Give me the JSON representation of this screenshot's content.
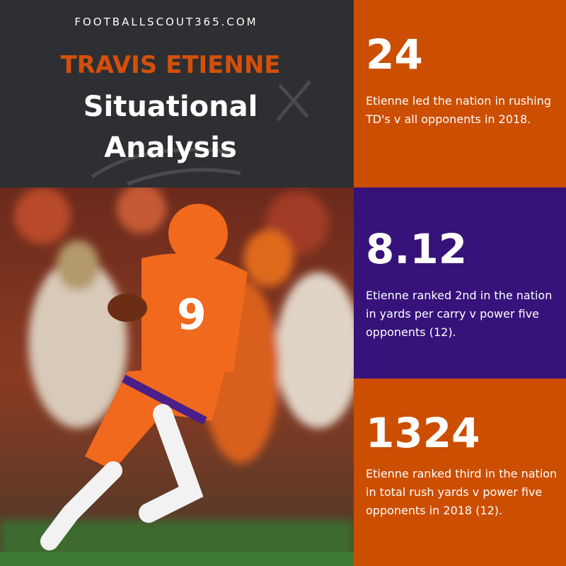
{
  "header": {
    "site": "FOOTBALLSCOUT365.COM",
    "name": "TRAVIS ETIENNE",
    "title": "Situational Analysis"
  },
  "stats": [
    {
      "value": "24",
      "text": "Etienne led the nation in rushing TD's v all opponents in 2018."
    },
    {
      "value": "8.12",
      "text": "Etienne ranked 2nd in the nation in yards per carry v power five opponents (12)."
    },
    {
      "value": "1324",
      "text": "Etienne ranked third in the nation in total rush yards v power five opponents in 2018 (12)."
    }
  ]
}
